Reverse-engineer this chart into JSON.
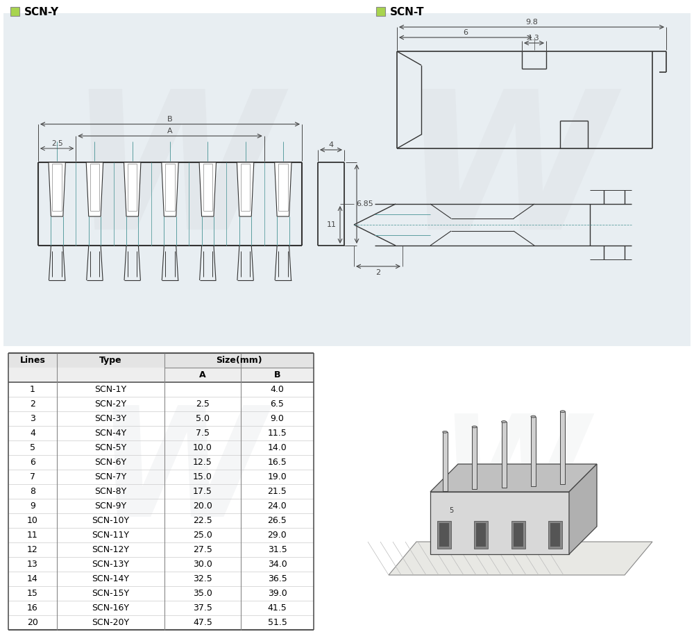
{
  "title_left": "SCN-Y",
  "title_right": "SCN-T",
  "legend_color": "#a8d44e",
  "table_size_header": "Size(mm)",
  "table_data": [
    [
      "1",
      "SCN-1Y",
      "",
      "4.0"
    ],
    [
      "2",
      "SCN-2Y",
      "2.5",
      "6.5"
    ],
    [
      "3",
      "SCN-3Y",
      "5.0",
      "9.0"
    ],
    [
      "4",
      "SCN-4Y",
      "7.5",
      "11.5"
    ],
    [
      "5",
      "SCN-5Y",
      "10.0",
      "14.0"
    ],
    [
      "6",
      "SCN-6Y",
      "12.5",
      "16.5"
    ],
    [
      "7",
      "SCN-7Y",
      "15.0",
      "19.0"
    ],
    [
      "8",
      "SCN-8Y",
      "17.5",
      "21.5"
    ],
    [
      "9",
      "SCN-9Y",
      "20.0",
      "24.0"
    ],
    [
      "10",
      "SCN-10Y",
      "22.5",
      "26.5"
    ],
    [
      "11",
      "SCN-11Y",
      "25.0",
      "29.0"
    ],
    [
      "12",
      "SCN-12Y",
      "27.5",
      "31.5"
    ],
    [
      "13",
      "SCN-13Y",
      "30.0",
      "34.0"
    ],
    [
      "14",
      "SCN-14Y",
      "32.5",
      "36.5"
    ],
    [
      "15",
      "SCN-15Y",
      "35.0",
      "39.0"
    ],
    [
      "16",
      "SCN-16Y",
      "37.5",
      "41.5"
    ],
    [
      "20",
      "SCN-20Y",
      "47.5",
      "51.5"
    ]
  ],
  "dim_B_label": "B",
  "dim_A_label": "A",
  "dim_25_label": "2.5",
  "dim_4_label": "4",
  "dim_685_label": "6.85",
  "dim_98_label": "9.8",
  "dim_6_label": "6",
  "dim_13_label": "1.3",
  "dim_11_label": "11",
  "dim_2_label": "2",
  "line_color": "#333333",
  "dim_color": "#444444",
  "teal_color": "#5b9ea0",
  "bg_panel": "#e8eef2"
}
